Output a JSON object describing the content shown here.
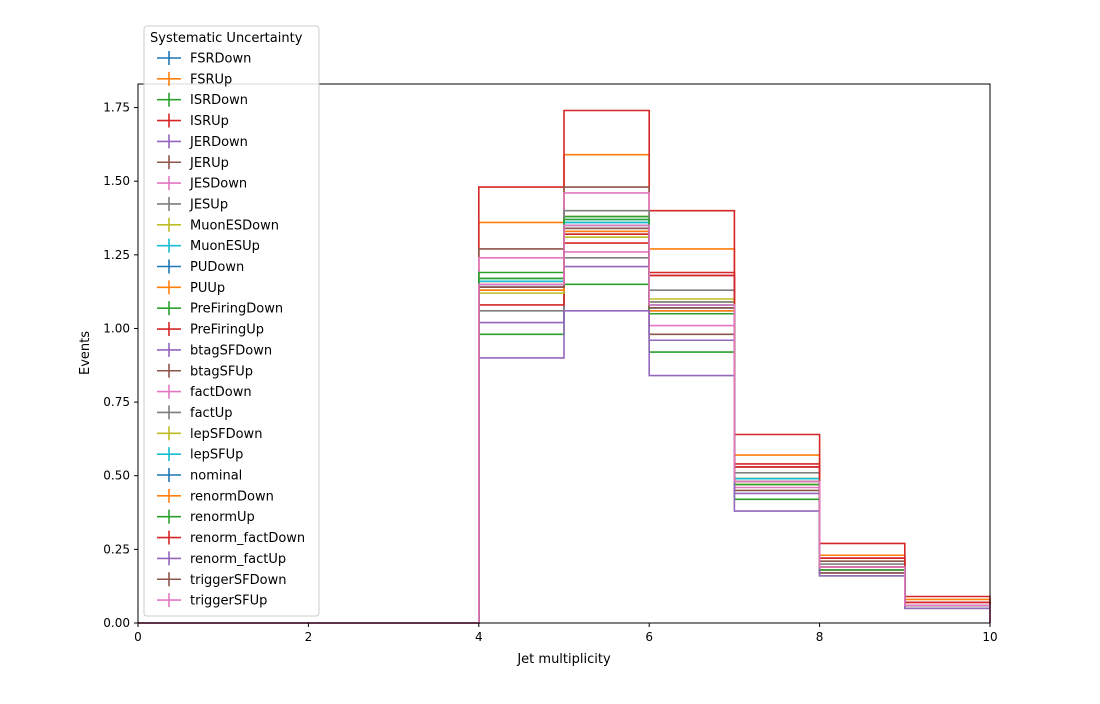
{
  "chart_data": {
    "type": "step",
    "title": "",
    "xlabel": "Jet multiplicity",
    "ylabel": "Events",
    "xlim": [
      0,
      10
    ],
    "ylim": [
      0,
      1.83
    ],
    "xticks": [
      "0",
      "2",
      "4",
      "6",
      "8",
      "10"
    ],
    "yticks": [
      "0.00",
      "0.25",
      "0.50",
      "0.75",
      "1.00",
      "1.25",
      "1.50",
      "1.75"
    ],
    "grid": false,
    "legend_title": "Systematic Uncertainty",
    "legend_position": "upper-left",
    "bin_edges": [
      0,
      1,
      2,
      3,
      4,
      5,
      6,
      7,
      8,
      9,
      10
    ],
    "series": [
      {
        "name": "FSRDown",
        "color": "#1f77b4",
        "values": [
          0,
          0,
          0,
          0,
          1.14,
          1.33,
          1.06,
          0.48,
          0.18,
          0.06
        ]
      },
      {
        "name": "FSRUp",
        "color": "#ff7f0e",
        "values": [
          0,
          0,
          0,
          0,
          1.36,
          1.59,
          1.27,
          0.57,
          0.23,
          0.08
        ]
      },
      {
        "name": "ISRDown",
        "color": "#2ca02c",
        "values": [
          0,
          0,
          0,
          0,
          0.98,
          1.15,
          0.92,
          0.42,
          0.16,
          0.05
        ]
      },
      {
        "name": "ISRUp",
        "color": "#d62728",
        "values": [
          0,
          0,
          0,
          0,
          1.48,
          1.74,
          1.4,
          0.64,
          0.27,
          0.09
        ]
      },
      {
        "name": "JERDown",
        "color": "#9467bd",
        "values": [
          0,
          0,
          0,
          0,
          1.02,
          1.21,
          0.96,
          0.44,
          0.17,
          0.06
        ]
      },
      {
        "name": "JERUp",
        "color": "#8c564b",
        "values": [
          0,
          0,
          0,
          0,
          1.27,
          1.48,
          1.18,
          0.53,
          0.21,
          0.07
        ]
      },
      {
        "name": "JESDown",
        "color": "#e377c2",
        "values": [
          0,
          0,
          0,
          0,
          1.24,
          1.46,
          1.18,
          0.53,
          0.22,
          0.07
        ]
      },
      {
        "name": "JESUp",
        "color": "#7f7f7f",
        "values": [
          0,
          0,
          0,
          0,
          1.06,
          1.24,
          1.13,
          0.51,
          0.2,
          0.07
        ]
      },
      {
        "name": "MuonESDown",
        "color": "#bcbd22",
        "values": [
          0,
          0,
          0,
          0,
          1.16,
          1.38,
          1.09,
          0.49,
          0.19,
          0.06
        ]
      },
      {
        "name": "MuonESUp",
        "color": "#17becf",
        "values": [
          0,
          0,
          0,
          0,
          1.17,
          1.37,
          1.08,
          0.49,
          0.19,
          0.06
        ]
      },
      {
        "name": "PUDown",
        "color": "#1f77b4",
        "values": [
          0,
          0,
          0,
          0,
          1.15,
          1.36,
          1.07,
          0.48,
          0.19,
          0.06
        ]
      },
      {
        "name": "PUUp",
        "color": "#ff7f0e",
        "values": [
          0,
          0,
          0,
          0,
          1.13,
          1.32,
          1.05,
          0.47,
          0.18,
          0.06
        ]
      },
      {
        "name": "PreFiringDown",
        "color": "#2ca02c",
        "values": [
          0,
          0,
          0,
          0,
          1.19,
          1.38,
          1.08,
          0.48,
          0.19,
          0.06
        ]
      },
      {
        "name": "PreFiringUp",
        "color": "#d62728",
        "values": [
          0,
          0,
          0,
          0,
          1.08,
          1.29,
          1.19,
          0.54,
          0.22,
          0.07
        ]
      },
      {
        "name": "btagSFDown",
        "color": "#9467bd",
        "values": [
          0,
          0,
          0,
          0,
          1.14,
          1.34,
          1.07,
          0.48,
          0.19,
          0.06
        ]
      },
      {
        "name": "btagSFUp",
        "color": "#8c564b",
        "values": [
          0,
          0,
          0,
          0,
          1.15,
          1.35,
          0.98,
          0.45,
          0.17,
          0.06
        ]
      },
      {
        "name": "factDown",
        "color": "#e377c2",
        "values": [
          0,
          0,
          0,
          0,
          1.14,
          1.26,
          1.01,
          0.46,
          0.18,
          0.06
        ]
      },
      {
        "name": "factUp",
        "color": "#7f7f7f",
        "values": [
          0,
          0,
          0,
          0,
          1.16,
          1.4,
          1.09,
          0.49,
          0.19,
          0.06
        ]
      },
      {
        "name": "lepSFDown",
        "color": "#bcbd22",
        "values": [
          0,
          0,
          0,
          0,
          1.12,
          1.31,
          1.1,
          0.49,
          0.19,
          0.06
        ]
      },
      {
        "name": "lepSFUp",
        "color": "#17becf",
        "values": [
          0,
          0,
          0,
          0,
          1.16,
          1.36,
          1.08,
          0.49,
          0.19,
          0.06
        ]
      },
      {
        "name": "nominal",
        "color": "#1f77b4",
        "values": [
          0,
          0,
          0,
          0,
          1.15,
          1.35,
          1.07,
          0.48,
          0.19,
          0.06
        ]
      },
      {
        "name": "renormDown",
        "color": "#ff7f0e",
        "values": [
          0,
          0,
          0,
          0,
          1.13,
          1.33,
          1.06,
          0.48,
          0.19,
          0.06
        ]
      },
      {
        "name": "renormUp",
        "color": "#2ca02c",
        "values": [
          0,
          0,
          0,
          0,
          1.17,
          1.37,
          1.05,
          0.47,
          0.18,
          0.06
        ]
      },
      {
        "name": "renorm_factDown",
        "color": "#d62728",
        "values": [
          0,
          0,
          0,
          0,
          1.14,
          1.32,
          1.18,
          0.53,
          0.22,
          0.07
        ]
      },
      {
        "name": "renorm_factUp",
        "color": "#9467bd",
        "values": [
          0,
          0,
          0,
          0,
          0.9,
          1.06,
          0.84,
          0.38,
          0.16,
          0.05
        ]
      },
      {
        "name": "triggerSFDown",
        "color": "#8c564b",
        "values": [
          0,
          0,
          0,
          0,
          1.14,
          1.34,
          1.07,
          0.48,
          0.19,
          0.06
        ]
      },
      {
        "name": "triggerSFUp",
        "color": "#e377c2",
        "values": [
          0,
          0,
          0,
          0,
          1.15,
          1.35,
          1.08,
          0.48,
          0.19,
          0.06
        ]
      }
    ]
  }
}
